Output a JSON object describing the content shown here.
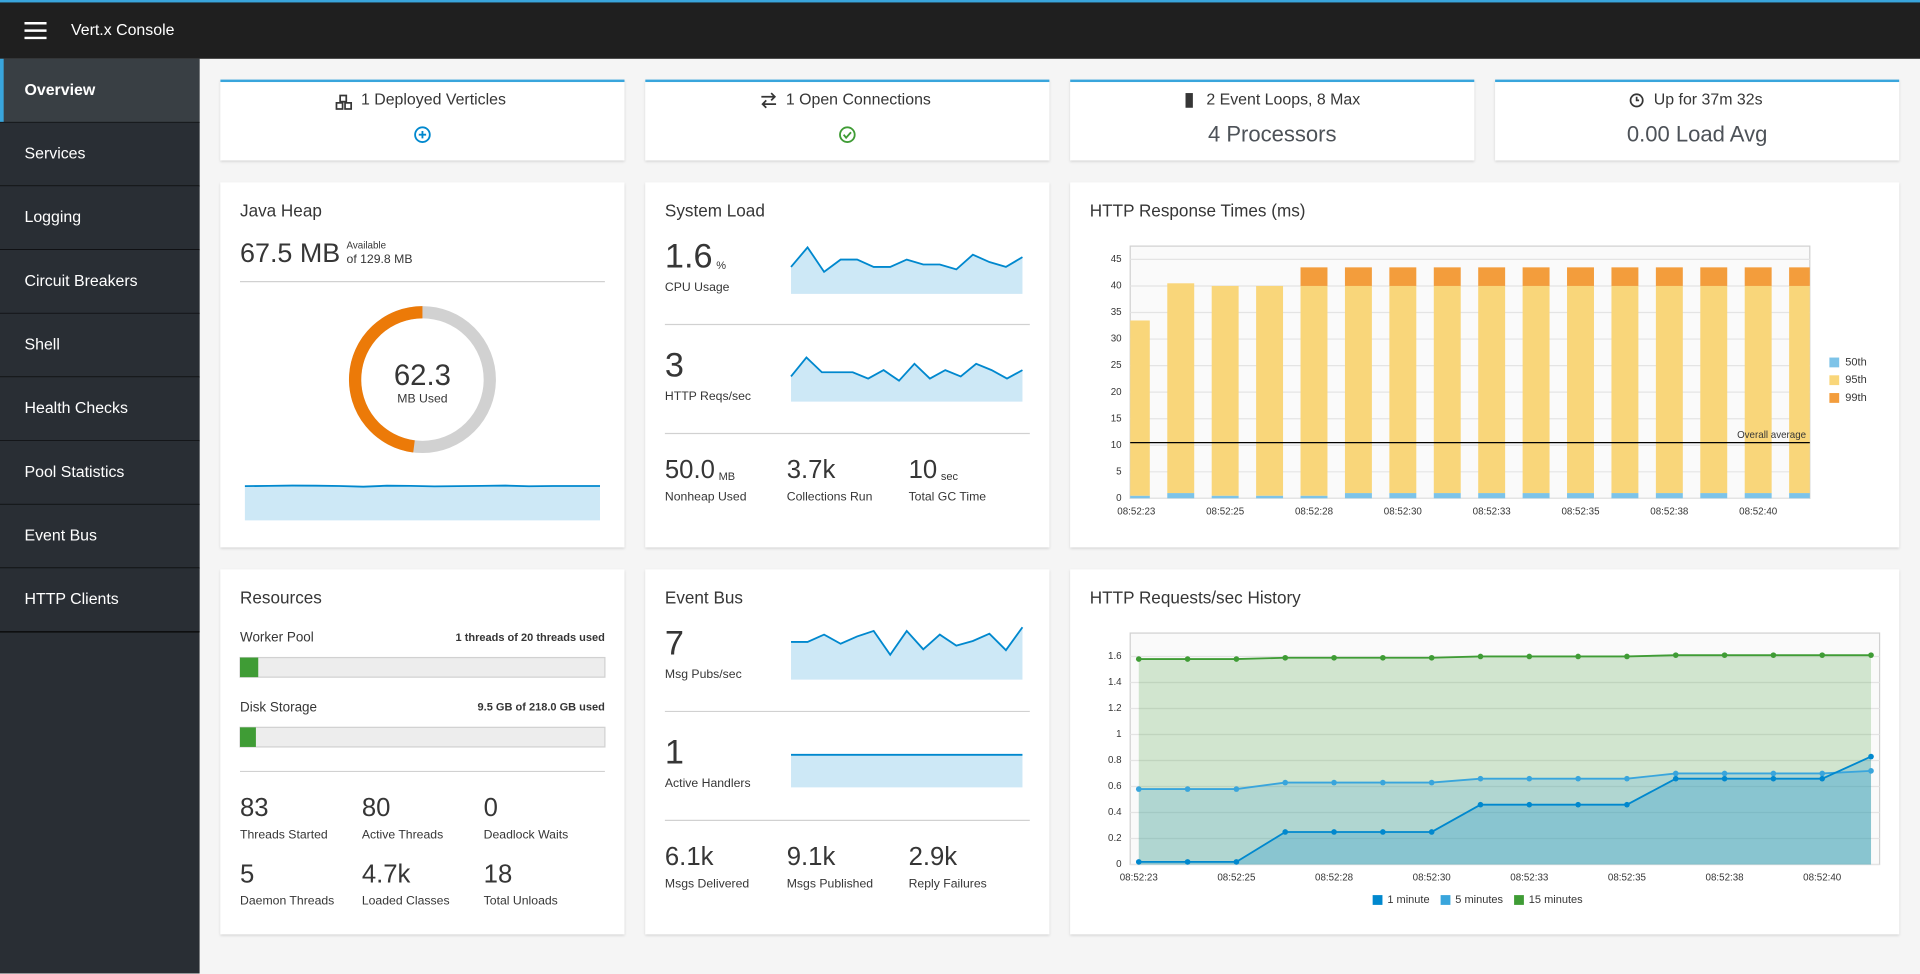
{
  "header": {
    "title": "Vert.x Console"
  },
  "nav": {
    "items": [
      "Overview",
      "Services",
      "Logging",
      "Circuit Breakers",
      "Shell",
      "Health Checks",
      "Pool Statistics",
      "Event Bus",
      "HTTP Clients"
    ],
    "active": 0
  },
  "summary": [
    {
      "title": "1 Deployed Verticles"
    },
    {
      "title": "1 Open Connections"
    },
    {
      "title": "2 Event Loops, 8 Max",
      "value": "4 Processors"
    },
    {
      "title": "Up for 37m 32s",
      "value": "0.00 Load Avg"
    }
  ],
  "java_heap": {
    "title": "Java Heap",
    "value": "67.5 MB",
    "available_label": "Available",
    "available": "of 129.8 MB",
    "donut": {
      "used": 62.3,
      "total": 129.8,
      "label": "MB Used",
      "color": "#ec7a08",
      "track_color": "#d1d1d1"
    },
    "sparkline": [
      61.9,
      62.1,
      62.3,
      62.2,
      62.0,
      61.5,
      62.2,
      62.1,
      61.7,
      61.9,
      62.1,
      62.3,
      61.8,
      62.0,
      62.0,
      62.0
    ]
  },
  "system_load": {
    "title": "System Load",
    "metrics": [
      {
        "value": "1.6",
        "unit": "%",
        "label": "CPU Usage",
        "sparkline": [
          1.5,
          1.9,
          1.4,
          1.65,
          1.65,
          1.5,
          1.5,
          1.65,
          1.55,
          1.55,
          1.45,
          1.75,
          1.6,
          1.5,
          1.7
        ]
      },
      {
        "value": "3",
        "label": "HTTP Reqs/sec",
        "sparkline": [
          2.6,
          3.5,
          2.8,
          2.8,
          2.8,
          2.5,
          2.9,
          2.4,
          3.2,
          2.5,
          2.9,
          2.6,
          3.2,
          2.9,
          2.5,
          2.9
        ]
      }
    ],
    "stats": [
      {
        "value": "50.0",
        "unit": "MB",
        "label": "Nonheap Used"
      },
      {
        "value": "3.7k",
        "label": "Collections Run"
      },
      {
        "value": "10",
        "unit": "sec",
        "label": "Total GC Time"
      }
    ]
  },
  "resources": {
    "title": "Resources",
    "bars": [
      {
        "label": "Worker Pool",
        "text": "1 threads of 20 threads used",
        "used": 1,
        "total": 20,
        "color": "#3f9c35"
      },
      {
        "label": "Disk Storage",
        "text": "9.5 GB of 218.0 GB used",
        "used": 9.5,
        "total": 218,
        "color": "#3f9c35"
      }
    ],
    "stats": [
      {
        "value": "83",
        "label": "Threads Started"
      },
      {
        "value": "80",
        "label": "Active Threads"
      },
      {
        "value": "0",
        "label": "Deadlock Waits"
      },
      {
        "value": "5",
        "label": "Daemon Threads"
      },
      {
        "value": "4.7k",
        "label": "Loaded Classes"
      },
      {
        "value": "18",
        "label": "Total Unloads"
      }
    ]
  },
  "event_bus": {
    "title": "Event Bus",
    "metrics": [
      {
        "value": "7",
        "label": "Msg Pubs/sec",
        "sparkline": [
          7.0,
          7.0,
          7.8,
          6.8,
          7.6,
          8.2,
          5.6,
          8.2,
          6.2,
          7.8,
          6.6,
          7.1,
          7.9,
          6.1,
          8.6
        ]
      },
      {
        "value": "1",
        "label": "Active Handlers",
        "sparkline": [
          1,
          1,
          1,
          1,
          1,
          1,
          1,
          1,
          1,
          1,
          1,
          1,
          1,
          1,
          1,
          1
        ]
      }
    ],
    "stats": [
      {
        "value": "6.1k",
        "label": "Msgs Delivered"
      },
      {
        "value": "9.1k",
        "label": "Msgs Published"
      },
      {
        "value": "2.9k",
        "label": "Reply Failures"
      }
    ]
  },
  "chart_data": [
    {
      "type": "bar",
      "stacked": true,
      "title": "HTTP Response Times (ms)",
      "categories": [
        "08:52:23",
        null,
        "08:52:25",
        null,
        "08:52:28",
        null,
        "08:52:30",
        null,
        "08:52:33",
        null,
        "08:52:35",
        null,
        "08:52:38",
        null,
        "08:52:40",
        null
      ],
      "series": [
        {
          "name": "50th",
          "color": "#7dc3e8",
          "values": [
            0.5,
            1,
            0.5,
            0.5,
            0.5,
            1,
            1,
            1,
            1,
            1,
            1,
            1,
            1,
            1,
            1,
            1
          ]
        },
        {
          "name": "95th",
          "color": "#f9d67a",
          "values": [
            33,
            39.5,
            39.5,
            39.5,
            39.5,
            39,
            39,
            39,
            39,
            39,
            39,
            39,
            39,
            39,
            39,
            39
          ]
        },
        {
          "name": "99th",
          "color": "#f39d3c",
          "values": [
            0,
            0,
            0,
            0,
            3.5,
            3.5,
            3.5,
            3.5,
            3.5,
            3.5,
            3.5,
            3.5,
            3.5,
            3.5,
            3.5,
            3.5
          ]
        }
      ],
      "ylim": [
        0,
        47.5
      ],
      "yticks": [
        0,
        5,
        10,
        15,
        20,
        25,
        30,
        35,
        40,
        45
      ],
      "grid": true,
      "legend": "right",
      "annotations": [
        {
          "label": "Overall average",
          "value": 10.5
        }
      ]
    },
    {
      "type": "area",
      "title": "HTTP Requests/sec History",
      "categories": [
        "08:52:23",
        null,
        "08:52:25",
        null,
        "08:52:28",
        null,
        "08:52:30",
        null,
        "08:52:33",
        null,
        "08:52:35",
        null,
        "08:52:38",
        null,
        "08:52:40",
        null
      ],
      "series": [
        {
          "name": "1 minute",
          "color": "#0088ce",
          "values": [
            0.02,
            0.02,
            0.02,
            0.25,
            0.25,
            0.25,
            0.25,
            0.46,
            0.46,
            0.46,
            0.46,
            0.66,
            0.66,
            0.66,
            0.66,
            0.83
          ]
        },
        {
          "name": "5 minutes",
          "color": "#39a5dc",
          "values": [
            0.58,
            0.58,
            0.58,
            0.63,
            0.63,
            0.63,
            0.63,
            0.66,
            0.66,
            0.66,
            0.66,
            0.7,
            0.7,
            0.7,
            0.7,
            0.72
          ]
        },
        {
          "name": "15 minutes",
          "color": "#3f9c35",
          "values": [
            1.58,
            1.58,
            1.58,
            1.59,
            1.59,
            1.59,
            1.59,
            1.6,
            1.6,
            1.6,
            1.6,
            1.61,
            1.61,
            1.61,
            1.61,
            1.61
          ]
        }
      ],
      "ylim": [
        0,
        1.78
      ],
      "yticks": [
        0,
        0.2,
        0.4,
        0.6,
        0.8,
        1,
        1.2,
        1.4,
        1.6
      ],
      "grid": true,
      "legend": "bottom"
    }
  ]
}
